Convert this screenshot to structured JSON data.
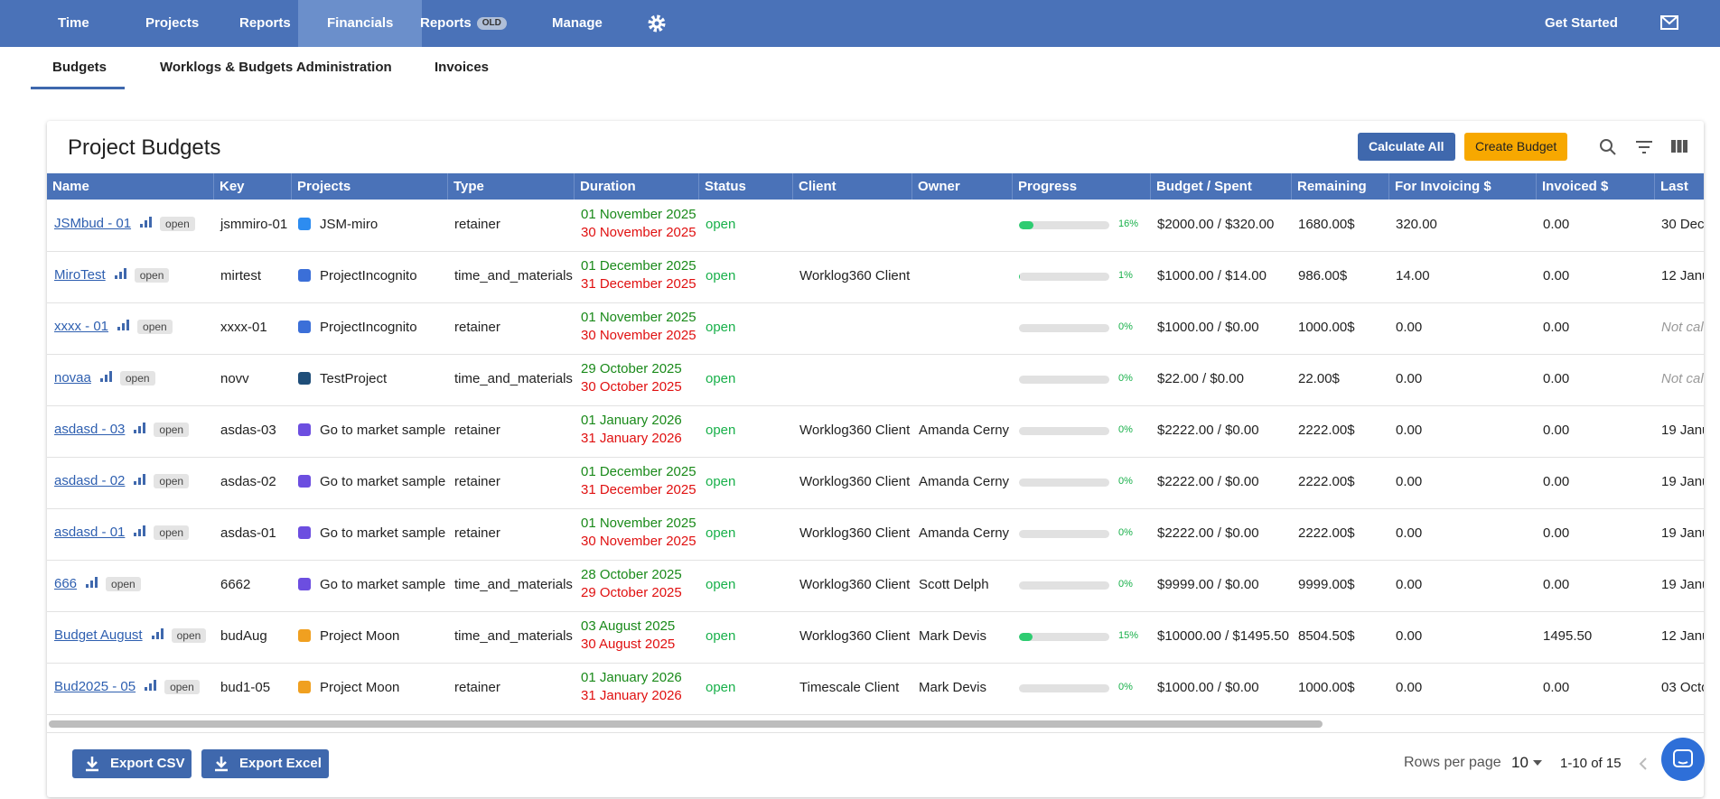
{
  "nav": {
    "items": [
      "Time",
      "Projects",
      "Reports",
      "Financials",
      "Reports",
      "Manage"
    ],
    "old_badge": "OLD",
    "active": 3,
    "get_started": "Get Started"
  },
  "subtabs": {
    "items": [
      "Budgets",
      "Worklogs & Budgets Administration",
      "Invoices"
    ],
    "active": 0
  },
  "card": {
    "title": "Project Budgets",
    "calculate": "Calculate All",
    "create": "Create Budget"
  },
  "table": {
    "columns": [
      "Name",
      "Key",
      "Projects",
      "Type",
      "Duration",
      "Status",
      "Client",
      "Owner",
      "Progress",
      "Budget / Spent",
      "Remaining",
      "For Invoicing $",
      "Invoiced $",
      "Last Ca"
    ],
    "rows": [
      {
        "name": "JSMbud - 01",
        "tag": "open",
        "key": "jsmmiro-01",
        "project": "JSM-miro",
        "icon_color": "#2d8cf0",
        "type": "retainer",
        "start": "01 November 2025",
        "end": "30 November 2025",
        "status": "open",
        "progress": 16,
        "progress_label": "16%",
        "budget": "$2000.00 / $320.00",
        "remaining": "1680.00$",
        "for_invoicing": "320.00",
        "invoiced": "0.00",
        "last": "30 Dec"
      },
      {
        "name": "MiroTest",
        "tag": "open",
        "key": "mirtest",
        "project": "ProjectIncognito",
        "icon_color": "#3b6fd8",
        "type": "time_and_materials",
        "start": "01 December 2025",
        "end": "31 December 2025",
        "status": "open",
        "client": "Worklog360 Client",
        "progress": 1,
        "progress_label": "1%",
        "budget": "$1000.00 / $14.00",
        "remaining": "986.00$",
        "for_invoicing": "14.00",
        "invoiced": "0.00",
        "last": "12 Janu"
      },
      {
        "name": "xxxx - 01",
        "tag": "open",
        "key": "xxxx-01",
        "project": "ProjectIncognito",
        "icon_color": "#3b6fd8",
        "type": "retainer",
        "start": "01 November 2025",
        "end": "30 November 2025",
        "status": "open",
        "progress": 0,
        "progress_label": "0%",
        "budget": "$1000.00 / $0.00",
        "remaining": "1000.00$",
        "for_invoicing": "0.00",
        "invoiced": "0.00",
        "last_muted": "Not calc"
      },
      {
        "name": "novaa",
        "tag": "open",
        "key": "novv",
        "project": "TestProject",
        "icon_color": "#1f4e79",
        "type": "time_and_materials",
        "start": "29 October 2025",
        "end": "30 October 2025",
        "status": "open",
        "progress": 0,
        "progress_label": "0%",
        "budget": "$22.00 / $0.00",
        "remaining": "22.00$",
        "for_invoicing": "0.00",
        "invoiced": "0.00",
        "last_muted": "Not calc"
      },
      {
        "name": "asdasd - 03",
        "tag": "open",
        "key": "asdas-03",
        "project": "Go to market sample",
        "icon_color": "#6c4ee0",
        "type": "retainer",
        "start": "01 January 2026",
        "end": "31 January 2026",
        "status": "open",
        "client": "Worklog360 Client",
        "owner": "Amanda Cerny",
        "progress": 0,
        "progress_label": "0%",
        "budget": "$2222.00 / $0.00",
        "remaining": "2222.00$",
        "for_invoicing": "0.00",
        "invoiced": "0.00",
        "last": "19 Janu"
      },
      {
        "name": "asdasd - 02",
        "tag": "open",
        "key": "asdas-02",
        "project": "Go to market sample",
        "icon_color": "#6c4ee0",
        "type": "retainer",
        "start": "01 December 2025",
        "end": "31 December 2025",
        "status": "open",
        "client": "Worklog360 Client",
        "owner": "Amanda Cerny",
        "progress": 0,
        "progress_label": "0%",
        "budget": "$2222.00 / $0.00",
        "remaining": "2222.00$",
        "for_invoicing": "0.00",
        "invoiced": "0.00",
        "last": "19 Janu"
      },
      {
        "name": "asdasd - 01",
        "tag": "open",
        "key": "asdas-01",
        "project": "Go to market sample",
        "icon_color": "#6c4ee0",
        "type": "retainer",
        "start": "01 November 2025",
        "end": "30 November 2025",
        "status": "open",
        "client": "Worklog360 Client",
        "owner": "Amanda Cerny",
        "progress": 0,
        "progress_label": "0%",
        "budget": "$2222.00 / $0.00",
        "remaining": "2222.00$",
        "for_invoicing": "0.00",
        "invoiced": "0.00",
        "last": "19 Janu"
      },
      {
        "name": "666",
        "tag": "open",
        "key": "6662",
        "project": "Go to market sample",
        "icon_color": "#6c4ee0",
        "type": "time_and_materials",
        "start": "28 October 2025",
        "end": "29 October 2025",
        "status": "open",
        "client": "Worklog360 Client",
        "owner": "Scott Delph",
        "progress": 0,
        "progress_label": "0%",
        "budget": "$9999.00 / $0.00",
        "remaining": "9999.00$",
        "for_invoicing": "0.00",
        "invoiced": "0.00",
        "last": "19 Janu"
      },
      {
        "name": "Budget August",
        "tag": "open",
        "key": "budAug",
        "project": "Project Moon",
        "icon_color": "#f0a020",
        "type": "time_and_materials",
        "start": "03 August 2025",
        "end": "30 August 2025",
        "status": "open",
        "client": "Worklog360 Client",
        "owner": "Mark Devis",
        "progress": 15,
        "progress_label": "15%",
        "budget": "$10000.00 / $1495.50",
        "remaining": "8504.50$",
        "for_invoicing": "0.00",
        "invoiced": "1495.50",
        "last": "12 Janu"
      },
      {
        "name": "Bud2025 - 05",
        "tag": "open",
        "key": "bud1-05",
        "project": "Project Moon",
        "icon_color": "#f0a020",
        "type": "retainer",
        "start": "01 January 2026",
        "end": "31 January 2026",
        "status": "open",
        "client": "Timescale Client",
        "owner": "Mark Devis",
        "progress": 0,
        "progress_label": "0%",
        "budget": "$1000.00 / $0.00",
        "remaining": "1000.00$",
        "for_invoicing": "0.00",
        "invoiced": "0.00",
        "last": "03 Octo"
      }
    ]
  },
  "footer": {
    "export_csv": "Export CSV",
    "export_excel": "Export Excel",
    "rows_per_page": "Rows per page",
    "rows_value": "10",
    "range": "1-10 of 15"
  }
}
